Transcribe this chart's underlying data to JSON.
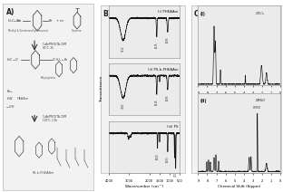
{
  "panel_labels": [
    "A)",
    "B)",
    "C)"
  ],
  "fig_bg": "#ffffff",
  "section_A": {
    "label": "A)",
    "line1": "Methyl 4-(bromomethyl)benzoate",
    "line2": "Styrene",
    "reagent1": "CuBr/PMDETA, DMF",
    "cond1": "80°C, 2h",
    "mid_label": "Polystyrene",
    "reagent2": "CuBr/PMDETA, DMF",
    "cond2": "110°C, 2.5h",
    "heaam": "HEAAm",
    "product": "PS-b-PHEAAm"
  },
  "section_B": {
    "label": "B)",
    "spectra_labels": [
      "(i) PHEAAm",
      "(ii) PS-b-PHEAAm",
      "(iii) PS"
    ],
    "xlabel": "Wavenumber (cm⁻¹)",
    "ylabel": "Transmittance",
    "peaks_1": [
      3312,
      1635,
      1095
    ],
    "peaks_2": [
      3282,
      1635,
      1095
    ],
    "peaks_3": [
      1600,
      1093,
      700
    ]
  },
  "section_C": {
    "label": "C)",
    "spectra_labels": [
      "(i)",
      "(ii)"
    ],
    "xlabel": "Chemical Shift (δ/ppm)",
    "solvent_i": "CDCl₃",
    "solvent_ii": "DMSO",
    "xmin": 0,
    "xmax": 9
  },
  "colors": {
    "bg": "#f2f2f2",
    "text": "#222222",
    "spectrum": "#111111",
    "label": "#555555"
  }
}
